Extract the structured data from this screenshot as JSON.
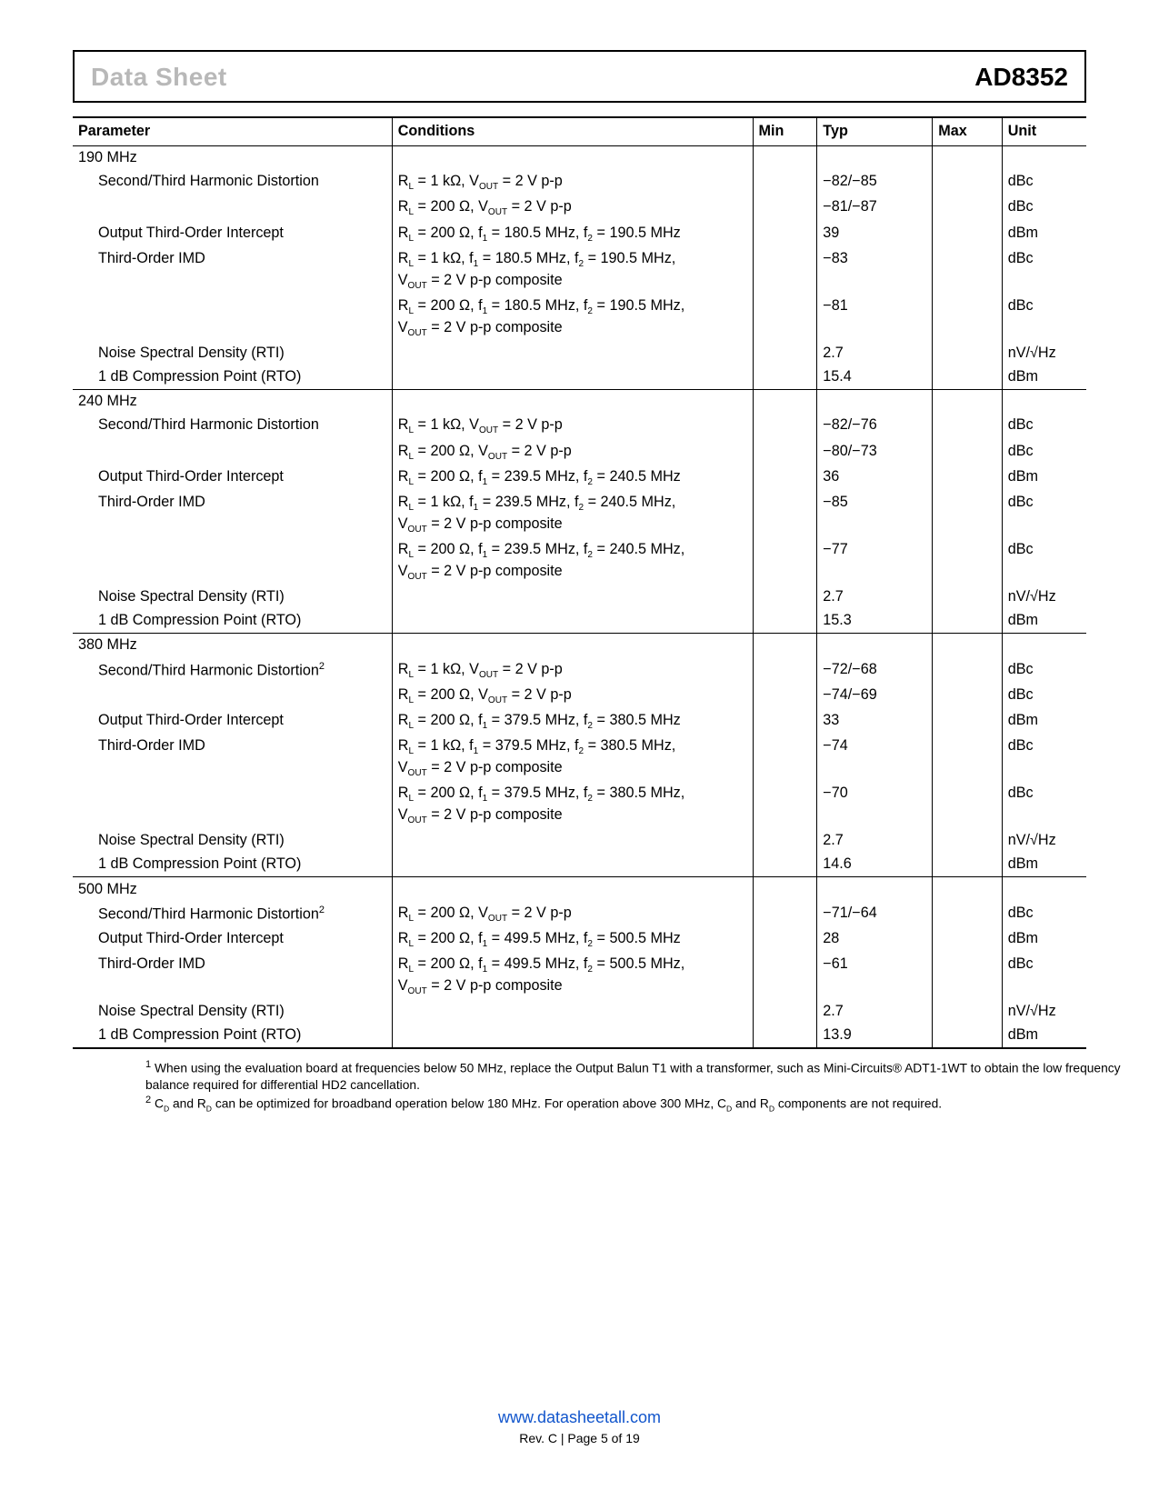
{
  "header": {
    "left": "Data Sheet",
    "right": "AD8352"
  },
  "columns": [
    "Parameter",
    "Conditions",
    "Min",
    "Typ",
    "Max",
    "Unit"
  ],
  "sections": [
    {
      "title": "190 MHz",
      "rows": [
        {
          "p": "Second/Third Harmonic Distortion",
          "c": "R<sub>L</sub> = 1 kΩ, V<sub>OUT</sub> = 2 V p-p",
          "t": "−82/−85",
          "u": "dBc"
        },
        {
          "p": "",
          "c": "R<sub>L</sub> = 200 Ω, V<sub>OUT</sub> = 2 V p-p",
          "t": "−81/−87",
          "u": "dBc"
        },
        {
          "p": "Output Third-Order Intercept",
          "c": "R<sub>L</sub> = 200 Ω, f<sub>1</sub> = 180.5 MHz, f<sub>2</sub> = 190.5 MHz",
          "t": "39",
          "u": "dBm"
        },
        {
          "p": "Third-Order IMD",
          "c": "R<sub>L</sub> = 1 kΩ, f<sub>1</sub> = 180.5 MHz, f<sub>2</sub> = 190.5 MHz,<br>V<sub>OUT</sub> = 2 V p-p composite",
          "t": "−83",
          "u": "dBc"
        },
        {
          "p": "",
          "c": "R<sub>L</sub> = 200 Ω, f<sub>1</sub> = 180.5 MHz, f<sub>2</sub> = 190.5 MHz,<br>V<sub>OUT</sub> = 2 V p-p composite",
          "t": "−81",
          "u": "dBc"
        },
        {
          "p": "Noise Spectral Density (RTI)",
          "c": "",
          "t": "2.7",
          "u": "nV/√Hz"
        },
        {
          "p": "1 dB Compression Point (RTO)",
          "c": "",
          "t": "15.4",
          "u": "dBm"
        }
      ]
    },
    {
      "title": "240 MHz",
      "rows": [
        {
          "p": "Second/Third Harmonic Distortion",
          "c": "R<sub>L</sub> = 1 kΩ, V<sub>OUT</sub> = 2 V p-p",
          "t": "−82/−76",
          "u": "dBc"
        },
        {
          "p": "",
          "c": "R<sub>L</sub> = 200 Ω, V<sub>OUT</sub> = 2 V p-p",
          "t": "−80/−73",
          "u": "dBc"
        },
        {
          "p": "Output Third-Order Intercept",
          "c": "R<sub>L</sub> = 200 Ω, f<sub>1</sub> = 239.5 MHz, f<sub>2</sub> = 240.5 MHz",
          "t": "36",
          "u": "dBm"
        },
        {
          "p": "Third-Order IMD",
          "c": "R<sub>L</sub> = 1 kΩ, f<sub>1</sub> = 239.5 MHz, f<sub>2</sub> = 240.5 MHz,<br>V<sub>OUT</sub> = 2 V p-p composite",
          "t": "−85",
          "u": "dBc"
        },
        {
          "p": "",
          "c": "R<sub>L</sub> = 200 Ω, f<sub>1</sub> = 239.5 MHz, f<sub>2</sub> = 240.5 MHz,<br>V<sub>OUT</sub> = 2 V p-p composite",
          "t": "−77",
          "u": "dBc"
        },
        {
          "p": "Noise Spectral Density (RTI)",
          "c": "",
          "t": "2.7",
          "u": "nV/√Hz"
        },
        {
          "p": "1 dB Compression Point (RTO)",
          "c": "",
          "t": "15.3",
          "u": "dBm"
        }
      ]
    },
    {
      "title": "380 MHz",
      "rows": [
        {
          "p": "Second/Third Harmonic Distortion<sup>2</sup>",
          "c": "R<sub>L</sub> = 1 kΩ, V<sub>OUT</sub> = 2 V p-p",
          "t": "−72/−68",
          "u": "dBc"
        },
        {
          "p": "",
          "c": "R<sub>L</sub> = 200 Ω, V<sub>OUT</sub> = 2 V p-p",
          "t": "−74/−69",
          "u": "dBc"
        },
        {
          "p": "Output Third-Order Intercept",
          "c": "R<sub>L</sub> = 200 Ω, f<sub>1</sub> = 379.5 MHz, f<sub>2</sub> = 380.5 MHz",
          "t": "33",
          "u": "dBm"
        },
        {
          "p": "Third-Order IMD",
          "c": "R<sub>L</sub> = 1 kΩ, f<sub>1</sub> = 379.5 MHz, f<sub>2</sub> = 380.5 MHz,<br>V<sub>OUT</sub> = 2 V p-p composite",
          "t": "−74",
          "u": "dBc"
        },
        {
          "p": "",
          "c": "R<sub>L</sub> = 200 Ω, f<sub>1</sub> = 379.5 MHz, f<sub>2</sub> = 380.5 MHz,<br>V<sub>OUT</sub> = 2 V p-p composite",
          "t": "−70",
          "u": "dBc"
        },
        {
          "p": "Noise Spectral Density (RTI)",
          "c": "",
          "t": "2.7",
          "u": "nV/√Hz"
        },
        {
          "p": "1 dB Compression Point (RTO)",
          "c": "",
          "t": "14.6",
          "u": "dBm"
        }
      ]
    },
    {
      "title": "500 MHz",
      "rows": [
        {
          "p": "Second/Third Harmonic Distortion<sup>2</sup>",
          "c": "R<sub>L</sub> = 200 Ω, V<sub>OUT</sub> = 2 V p-p",
          "t": "−71/−64",
          "u": "dBc"
        },
        {
          "p": "Output Third-Order Intercept",
          "c": "R<sub>L</sub> = 200 Ω, f<sub>1</sub> = 499.5 MHz, f<sub>2</sub> = 500.5 MHz",
          "t": "28",
          "u": "dBm"
        },
        {
          "p": "Third-Order IMD",
          "c": "R<sub>L</sub> = 200 Ω, f<sub>1</sub> = 499.5 MHz, f<sub>2</sub> = 500.5 MHz,<br>V<sub>OUT</sub> = 2 V p-p composite",
          "t": "−61",
          "u": "dBc"
        },
        {
          "p": "Noise Spectral Density (RTI)",
          "c": "",
          "t": "2.7",
          "u": "nV/√Hz"
        },
        {
          "p": "1 dB Compression Point (RTO)",
          "c": "",
          "t": "13.9",
          "u": "dBm"
        }
      ],
      "last": true
    }
  ],
  "footnotes": [
    "<sup>1</sup> When using the evaluation board at frequencies below 50 MHz, replace the Output Balun T1 with a transformer, such as Mini-Circuits® ADT1-1WT to obtain the low frequency balance required for differential HD2 cancellation.",
    "<sup>2</sup> C<sub>D</sub> and R<sub>D</sub> can be optimized for broadband operation below 180 MHz. For operation above 300 MHz, C<sub>D</sub> and R<sub>D</sub> components are not required."
  ],
  "footer": {
    "url": "www.datasheetall.com",
    "rev": "Rev. C | Page 5 of 19"
  }
}
